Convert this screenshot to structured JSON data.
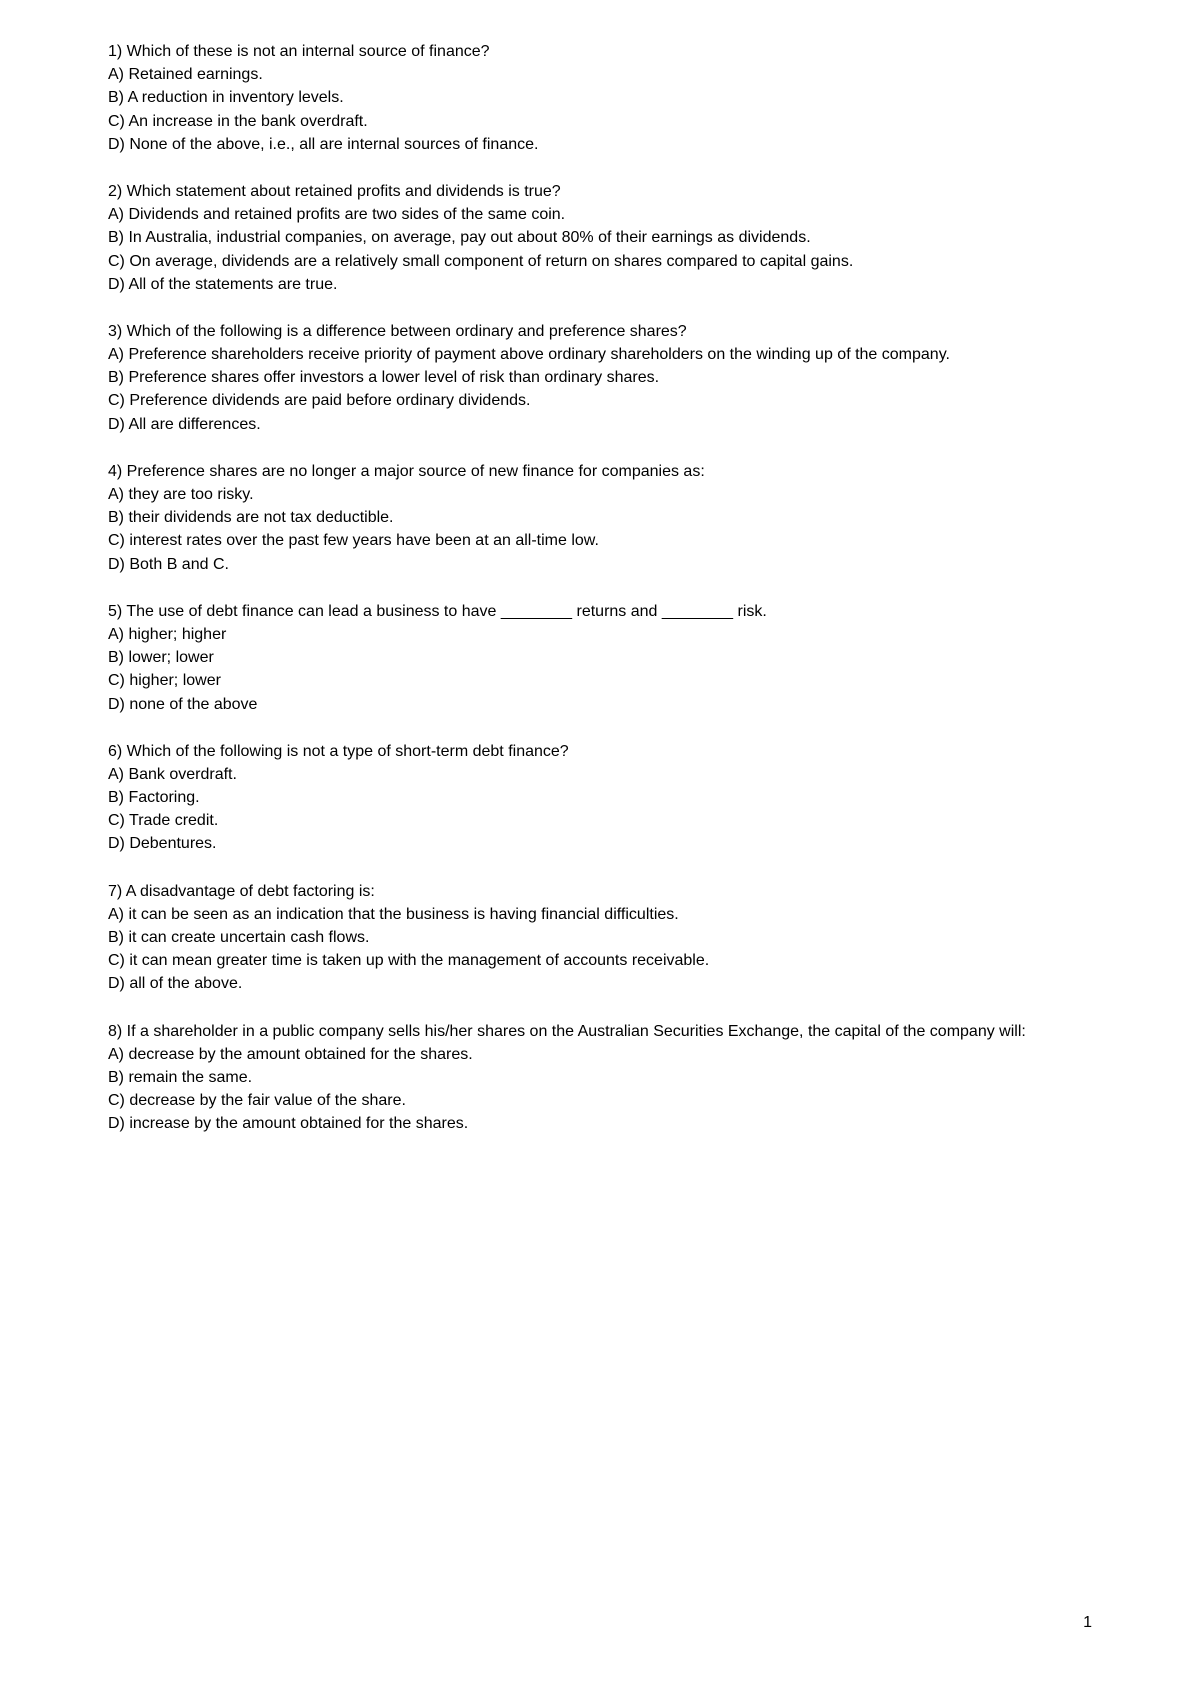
{
  "questions": [
    {
      "stem": "1) Which of these is not an internal source of finance?",
      "options": [
        "A) Retained earnings.",
        "B) A reduction in inventory levels.",
        "C) An increase in the bank overdraft.",
        "D) None of the above, i.e., all are internal sources of finance."
      ]
    },
    {
      "stem": "2) Which statement about retained profits and dividends is true?",
      "options": [
        "A) Dividends and retained profits are two sides of the same coin.",
        "B) In Australia, industrial companies, on average, pay out about 80% of their earnings as dividends.",
        "C) On average, dividends are a relatively small component of return on shares compared to capital gains.",
        "D) All of the statements are true."
      ]
    },
    {
      "stem": "3) Which of the following is a difference between ordinary and preference shares?",
      "options": [
        "A) Preference shareholders receive priority of payment above ordinary shareholders on the winding up of the company.",
        "B) Preference shares offer investors a lower level of risk than ordinary shares.",
        "C) Preference dividends are paid before ordinary dividends.",
        "D) All are differences."
      ]
    },
    {
      "stem": "4) Preference shares are no longer a major source of new finance for companies as:",
      "options": [
        "A) they are too risky.",
        "B) their dividends are not tax deductible.",
        "C) interest rates over the past few years have been at an all-time low.",
        "D) Both B and C."
      ]
    },
    {
      "stem": "5) The use of debt finance can lead a business to have ________ returns and ________ risk.",
      "options": [
        "A) higher; higher",
        "B) lower; lower",
        "C) higher; lower",
        "D) none of the above"
      ]
    },
    {
      "stem": "6) Which of the following is not a type of short-term debt finance?",
      "options": [
        "A) Bank overdraft.",
        "B) Factoring.",
        "C) Trade credit.",
        "D) Debentures."
      ]
    },
    {
      "stem": "7) A disadvantage of debt factoring is:",
      "options": [
        "A) it can be seen as an indication that the business is having financial difficulties.",
        "B) it can create uncertain cash flows.",
        "C) it can mean greater time is taken up with the management of accounts receivable.",
        "D) all of the above."
      ]
    },
    {
      "stem": "8) If a shareholder in a public company sells his/her shares on the Australian Securities Exchange, the capital of the company will:",
      "options": [
        "A) decrease by the amount obtained for the shares.",
        "B) remain the same.",
        "C) decrease by the fair value of the share.",
        "D) increase by the amount obtained for the shares."
      ]
    }
  ],
  "page_number": "1"
}
